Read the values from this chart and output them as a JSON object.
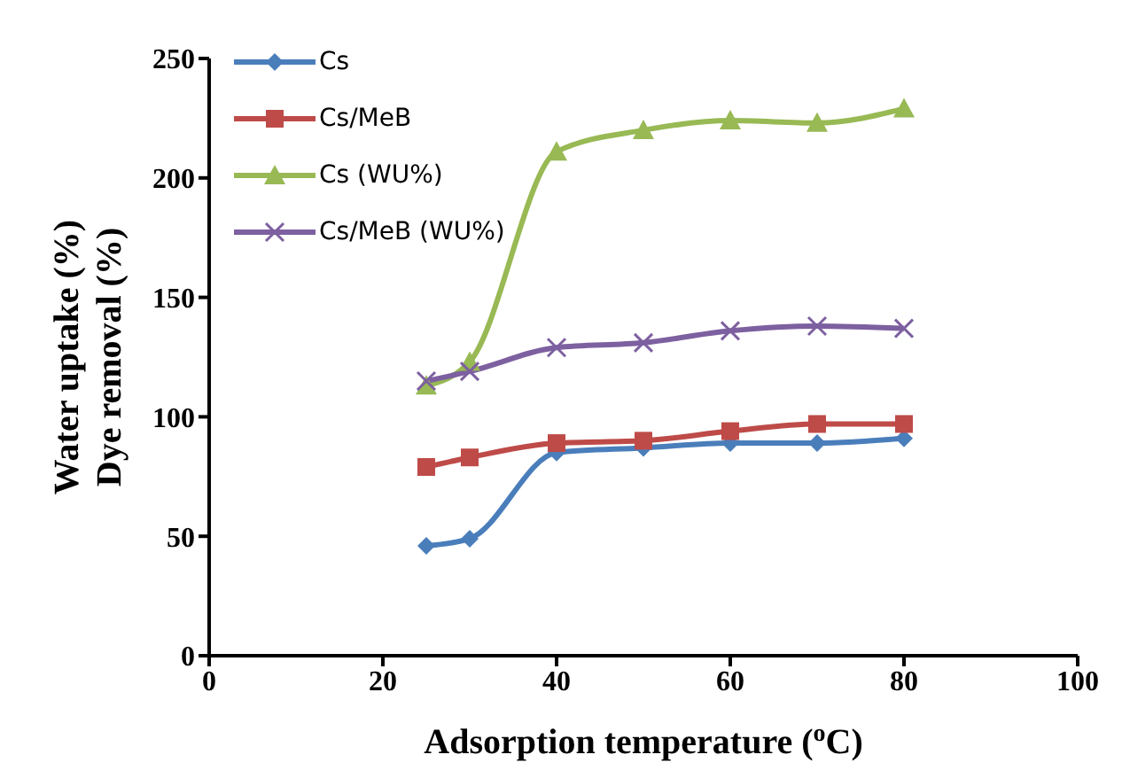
{
  "chart_data": {
    "type": "line",
    "xlabel": "Adsorption temperature ($^{o}$C)",
    "ylabel": "Water uptake (%)\nDye removal (%)",
    "x": [
      25,
      30,
      40,
      50,
      60,
      70,
      80
    ],
    "series": [
      {
        "name": "Cs",
        "color": "#4a7ebb",
        "marker": "diamond",
        "values": [
          46,
          49,
          85,
          87,
          89,
          89,
          91
        ]
      },
      {
        "name": "Cs/MeB",
        "color": "#be4b48",
        "marker": "square",
        "values": [
          79,
          83,
          89,
          90,
          94,
          97,
          97
        ]
      },
      {
        "name": "Cs (WU%)",
        "color": "#98b954",
        "marker": "triangle",
        "values": [
          113,
          123,
          211,
          220,
          224,
          223,
          229
        ]
      },
      {
        "name": "Cs/MeB (WU%)",
        "color": "#7d60a0",
        "marker": "cross",
        "values": [
          115,
          119,
          129,
          131,
          136,
          138,
          137
        ]
      }
    ],
    "xlim": [
      0,
      100
    ],
    "xticks": [
      0,
      20,
      40,
      60,
      80,
      100
    ],
    "ylim": [
      0,
      250
    ],
    "yticks": [
      0,
      50,
      100,
      150,
      200,
      250
    ],
    "grid": false,
    "legend": "top left",
    "line_style": "solid"
  }
}
